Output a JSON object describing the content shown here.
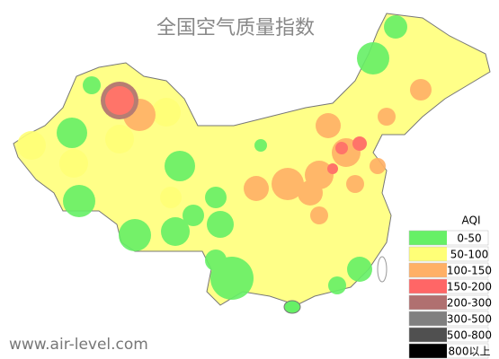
{
  "title": "全国空气质量指数",
  "legend": {
    "title": "AQI",
    "items": [
      {
        "label": "0-50",
        "color": "#66f066"
      },
      {
        "label": "50-100",
        "color": "#ffff77"
      },
      {
        "label": "100-150",
        "color": "#ffb066"
      },
      {
        "label": "150-200",
        "color": "#ff6666"
      },
      {
        "label": "200-300",
        "color": "#b07070"
      },
      {
        "label": "300-500",
        "color": "#808080"
      },
      {
        "label": "500-800",
        "color": "#505050"
      },
      {
        "label": "800以上",
        "color": "#000000"
      }
    ]
  },
  "watermark": "www.air-level.com"
}
